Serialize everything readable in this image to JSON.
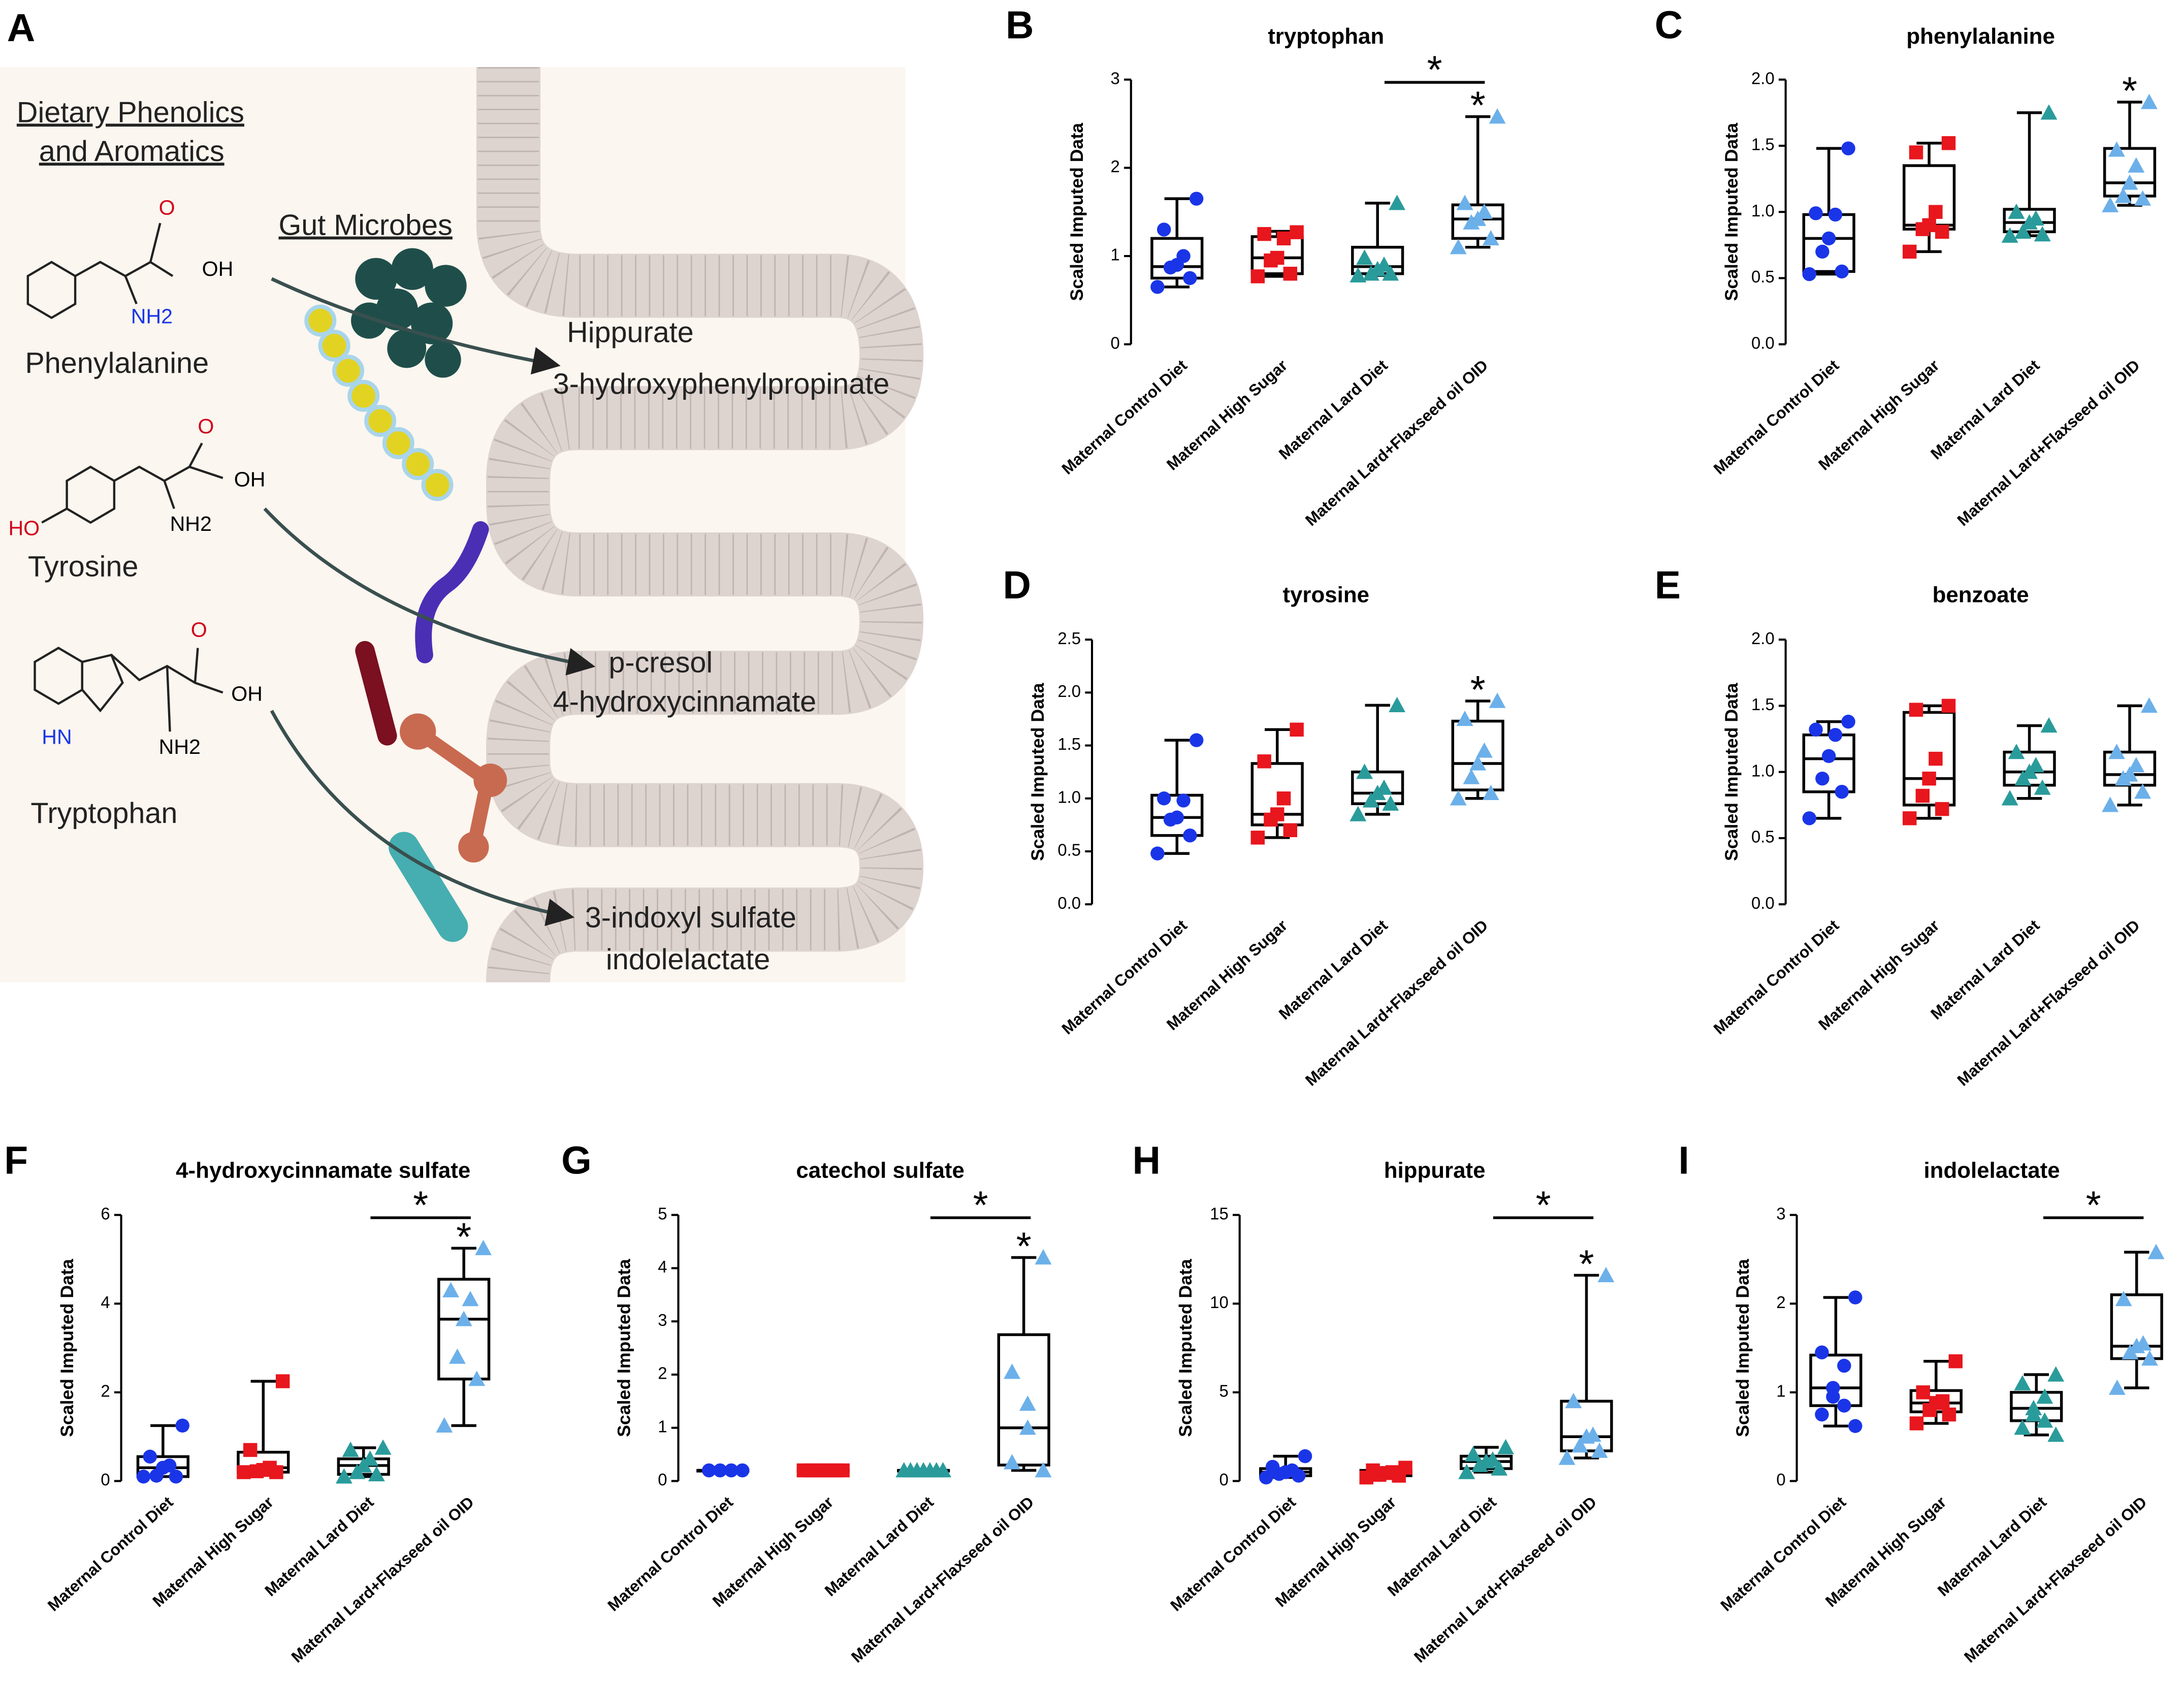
{
  "panel_a": {
    "label": "A",
    "heading_lines": [
      "Dietary Phenolics",
      "and Aromatics"
    ],
    "microbes_label": "Gut Microbes",
    "molecules": [
      {
        "name": "Phenylalanine",
        "atoms": [
          "O",
          "OH",
          "NH2"
        ]
      },
      {
        "name": "Tyrosine",
        "atoms": [
          "O",
          "OH",
          "NH2",
          "HO"
        ]
      },
      {
        "name": "Tryptophan",
        "atoms": [
          "O",
          "OH",
          "HN",
          "NH2"
        ]
      }
    ],
    "products": [
      [
        "Hippurate",
        "3-hydroxyphenylpropinate"
      ],
      [
        "p-cresol",
        "4-hydroxycinnamate"
      ],
      [
        "3-indoxyl sulfate",
        "indolelactate"
      ]
    ]
  },
  "chart_data": [
    {
      "type": "box",
      "panel": "B",
      "title": "tryptophan",
      "ylabel": "Scaled Imputed Data",
      "categories": [
        "Maternal Control Diet",
        "Maternal High Sugar",
        "Maternal Lard Diet",
        "Maternal Lard+Flaxseed oil OID"
      ],
      "colors": [
        "#1a35e8",
        "#e8161d",
        "#2a9b9b",
        "#6cb0ea"
      ],
      "markers": [
        "circle",
        "square",
        "triangle",
        "triangle"
      ],
      "ylim": [
        0,
        3
      ],
      "yticks": [
        0,
        1,
        2,
        3
      ],
      "bracket_star": "*",
      "group_star": "*",
      "boxes": [
        {
          "min": 0.65,
          "q1": 0.75,
          "median": 0.88,
          "q3": 1.2,
          "max": 1.65,
          "points": [
            1.65,
            1.3,
            1.0,
            0.9,
            0.87,
            0.75,
            0.65
          ]
        },
        {
          "min": 0.77,
          "q1": 0.8,
          "median": 0.98,
          "q3": 1.22,
          "max": 1.28,
          "points": [
            1.27,
            1.25,
            1.2,
            0.98,
            0.95,
            0.8,
            0.77
          ]
        },
        {
          "min": 0.78,
          "q1": 0.8,
          "median": 0.88,
          "q3": 1.1,
          "max": 1.6,
          "points": [
            1.6,
            0.98,
            0.9,
            0.85,
            0.8,
            0.8,
            0.78
          ]
        },
        {
          "min": 1.1,
          "q1": 1.2,
          "median": 1.42,
          "q3": 1.58,
          "max": 2.58,
          "points": [
            2.58,
            1.6,
            1.5,
            1.42,
            1.38,
            1.2,
            1.1
          ]
        }
      ]
    },
    {
      "type": "box",
      "panel": "C",
      "title": "phenylalanine",
      "ylabel": "Scaled Imputed Data",
      "categories": [
        "Maternal Control Diet",
        "Maternal High Sugar",
        "Maternal Lard Diet",
        "Maternal Lard+Flaxseed oil OID"
      ],
      "colors": [
        "#1a35e8",
        "#e8161d",
        "#2a9b9b",
        "#6cb0ea"
      ],
      "markers": [
        "circle",
        "square",
        "triangle",
        "triangle"
      ],
      "ylim": [
        0,
        2
      ],
      "yticks": [
        {
          "value": 0,
          "label": "0.0"
        },
        0.5,
        {
          "value": 1,
          "label": "1.0"
        },
        1.5,
        {
          "value": 2,
          "label": "2.0"
        }
      ],
      "group_star": "*",
      "boxes": [
        {
          "min": 0.53,
          "q1": 0.55,
          "median": 0.8,
          "q3": 0.98,
          "max": 1.48,
          "points": [
            1.48,
            0.99,
            0.98,
            0.8,
            0.7,
            0.55,
            0.53
          ]
        },
        {
          "min": 0.7,
          "q1": 0.87,
          "median": 0.9,
          "q3": 1.35,
          "max": 1.52,
          "points": [
            1.52,
            1.45,
            1.0,
            0.9,
            0.87,
            0.85,
            0.7
          ]
        },
        {
          "min": 0.82,
          "q1": 0.85,
          "median": 0.92,
          "q3": 1.02,
          "max": 1.75,
          "points": [
            1.75,
            1.0,
            0.95,
            0.92,
            0.85,
            0.83,
            0.82
          ]
        },
        {
          "min": 1.05,
          "q1": 1.12,
          "median": 1.22,
          "q3": 1.48,
          "max": 1.83,
          "points": [
            1.83,
            1.47,
            1.35,
            1.22,
            1.12,
            1.1,
            1.05
          ]
        }
      ]
    },
    {
      "type": "box",
      "panel": "D",
      "title": "tyrosine",
      "ylabel": "Scaled Imputed Data",
      "categories": [
        "Maternal Control Diet",
        "Maternal High Sugar",
        "Maternal Lard Diet",
        "Maternal Lard+Flaxseed oil OID"
      ],
      "colors": [
        "#1a35e8",
        "#e8161d",
        "#2a9b9b",
        "#6cb0ea"
      ],
      "markers": [
        "circle",
        "square",
        "triangle",
        "triangle"
      ],
      "ylim": [
        0,
        2.5
      ],
      "yticks": [
        {
          "value": 0,
          "label": "0.0"
        },
        0.5,
        {
          "value": 1,
          "label": "1.0"
        },
        1.5,
        {
          "value": 2,
          "label": "2.0"
        },
        2.5
      ],
      "group_star": "*",
      "boxes": [
        {
          "min": 0.48,
          "q1": 0.65,
          "median": 0.82,
          "q3": 1.03,
          "max": 1.55,
          "points": [
            1.55,
            1.0,
            0.98,
            0.82,
            0.8,
            0.65,
            0.48
          ]
        },
        {
          "min": 0.63,
          "q1": 0.75,
          "median": 0.85,
          "q3": 1.33,
          "max": 1.65,
          "points": [
            1.65,
            1.35,
            1.0,
            0.85,
            0.8,
            0.7,
            0.63
          ]
        },
        {
          "min": 0.85,
          "q1": 0.95,
          "median": 1.05,
          "q3": 1.25,
          "max": 1.88,
          "points": [
            1.88,
            1.25,
            1.1,
            1.05,
            0.98,
            0.95,
            0.85
          ]
        },
        {
          "min": 1.0,
          "q1": 1.08,
          "median": 1.33,
          "q3": 1.73,
          "max": 1.92,
          "points": [
            1.92,
            1.75,
            1.45,
            1.33,
            1.2,
            1.05,
            1.0
          ]
        }
      ]
    },
    {
      "type": "box",
      "panel": "E",
      "title": "benzoate",
      "ylabel": "Scaled Imputed Data",
      "categories": [
        "Maternal Control Diet",
        "Maternal High Sugar",
        "Maternal Lard Diet",
        "Maternal Lard+Flaxseed oil OID"
      ],
      "colors": [
        "#1a35e8",
        "#e8161d",
        "#2a9b9b",
        "#6cb0ea"
      ],
      "markers": [
        "circle",
        "square",
        "triangle",
        "triangle"
      ],
      "ylim": [
        0,
        2
      ],
      "yticks": [
        {
          "value": 0,
          "label": "0.0"
        },
        0.5,
        {
          "value": 1,
          "label": "1.0"
        },
        1.5,
        {
          "value": 2,
          "label": "2.0"
        }
      ],
      "boxes": [
        {
          "min": 0.65,
          "q1": 0.85,
          "median": 1.1,
          "q3": 1.28,
          "max": 1.38,
          "points": [
            1.38,
            1.32,
            1.28,
            1.12,
            0.95,
            0.85,
            0.65
          ]
        },
        {
          "min": 0.65,
          "q1": 0.75,
          "median": 0.95,
          "q3": 1.45,
          "max": 1.5,
          "points": [
            1.5,
            1.47,
            1.1,
            0.95,
            0.82,
            0.72,
            0.65
          ]
        },
        {
          "min": 0.8,
          "q1": 0.9,
          "median": 1.0,
          "q3": 1.15,
          "max": 1.35,
          "points": [
            1.35,
            1.15,
            1.05,
            1.0,
            0.95,
            0.88,
            0.8
          ]
        },
        {
          "min": 0.75,
          "q1": 0.9,
          "median": 0.98,
          "q3": 1.15,
          "max": 1.5,
          "points": [
            1.5,
            1.15,
            1.05,
            0.98,
            0.95,
            0.85,
            0.75
          ]
        }
      ]
    },
    {
      "type": "box",
      "panel": "F",
      "title": "4-hydroxycinnamate sulfate",
      "ylabel": "Scaled Imputed Data",
      "categories": [
        "Maternal Control Diet",
        "Maternal High Sugar",
        "Maternal Lard Diet",
        "Maternal Lard+Flaxseed oil OID"
      ],
      "colors": [
        "#1a35e8",
        "#e8161d",
        "#2a9b9b",
        "#6cb0ea"
      ],
      "markers": [
        "circle",
        "square",
        "triangle",
        "triangle"
      ],
      "ylim": [
        0,
        6
      ],
      "yticks": [
        0,
        2,
        4,
        6
      ],
      "bracket_star": "*",
      "group_star": "*",
      "boxes": [
        {
          "min": 0.1,
          "q1": 0.1,
          "median": 0.3,
          "q3": 0.55,
          "max": 1.25,
          "points": [
            1.25,
            0.55,
            0.35,
            0.3,
            0.12,
            0.1,
            0.1
          ]
        },
        {
          "min": 0.2,
          "q1": 0.2,
          "median": 0.3,
          "q3": 0.65,
          "max": 2.25,
          "points": [
            2.25,
            0.7,
            0.3,
            0.25,
            0.22,
            0.2,
            0.2
          ]
        },
        {
          "min": 0.1,
          "q1": 0.15,
          "median": 0.35,
          "q3": 0.5,
          "max": 0.75,
          "points": [
            0.75,
            0.7,
            0.5,
            0.35,
            0.2,
            0.15,
            0.1
          ]
        },
        {
          "min": 1.25,
          "q1": 2.3,
          "median": 3.65,
          "q3": 4.55,
          "max": 5.25,
          "points": [
            5.25,
            4.3,
            4.1,
            3.65,
            2.8,
            2.3,
            1.25
          ]
        }
      ]
    },
    {
      "type": "box",
      "panel": "G",
      "title": "catechol sulfate",
      "ylabel": "Scaled Imputed Data",
      "categories": [
        "Maternal Control Diet",
        "Maternal High Sugar",
        "Maternal Lard Diet",
        "Maternal Lard+Flaxseed oil OID"
      ],
      "colors": [
        "#1a35e8",
        "#e8161d",
        "#2a9b9b",
        "#6cb0ea"
      ],
      "markers": [
        "circle",
        "square",
        "triangle",
        "triangle"
      ],
      "ylim": [
        0,
        5
      ],
      "yticks": [
        0,
        1,
        2,
        3,
        4,
        5
      ],
      "bracket_star": "*",
      "group_star": "*",
      "boxes": [
        {
          "min": 0.2,
          "q1": 0.2,
          "median": 0.2,
          "q3": 0.2,
          "max": 0.2,
          "points": [
            0.2,
            0.2,
            0.2,
            0.2,
            0.2,
            0.2,
            0.2,
            0.2
          ]
        },
        {
          "min": 0.2,
          "q1": 0.2,
          "median": 0.2,
          "q3": 0.2,
          "max": 0.2,
          "points": [
            0.2,
            0.2,
            0.2,
            0.2,
            0.2,
            0.2,
            0.2
          ]
        },
        {
          "min": 0.2,
          "q1": 0.2,
          "median": 0.2,
          "q3": 0.2,
          "max": 0.2,
          "points": [
            0.2,
            0.2,
            0.2,
            0.2,
            0.2,
            0.2,
            0.2
          ]
        },
        {
          "min": 0.2,
          "q1": 0.3,
          "median": 1.0,
          "q3": 2.75,
          "max": 4.2,
          "points": [
            4.2,
            2.05,
            1.45,
            1.0,
            0.35,
            0.2
          ]
        }
      ]
    },
    {
      "type": "box",
      "panel": "H",
      "title": "hippurate",
      "ylabel": "Scaled Imputed Data",
      "categories": [
        "Maternal Control Diet",
        "Maternal High Sugar",
        "Maternal Lard Diet",
        "Maternal Lard+Flaxseed oil OID"
      ],
      "colors": [
        "#1a35e8",
        "#e8161d",
        "#2a9b9b",
        "#6cb0ea"
      ],
      "markers": [
        "circle",
        "square",
        "triangle",
        "triangle"
      ],
      "ylim": [
        0,
        15
      ],
      "yticks": [
        0,
        5,
        10,
        15
      ],
      "bracket_star": "*",
      "group_star": "*",
      "boxes": [
        {
          "min": 0.2,
          "q1": 0.3,
          "median": 0.5,
          "q3": 0.7,
          "max": 1.4,
          "points": [
            1.4,
            0.8,
            0.6,
            0.5,
            0.4,
            0.3,
            0.2
          ]
        },
        {
          "min": 0.2,
          "q1": 0.3,
          "median": 0.5,
          "q3": 0.6,
          "max": 0.75,
          "points": [
            0.75,
            0.6,
            0.5,
            0.45,
            0.35,
            0.3,
            0.2
          ]
        },
        {
          "min": 0.5,
          "q1": 0.7,
          "median": 1.1,
          "q3": 1.4,
          "max": 1.9,
          "points": [
            1.9,
            1.5,
            1.2,
            1.1,
            0.9,
            0.7,
            0.5
          ]
        },
        {
          "min": 1.3,
          "q1": 1.7,
          "median": 2.5,
          "q3": 4.5,
          "max": 11.6,
          "points": [
            11.6,
            4.5,
            2.6,
            2.5,
            2.0,
            1.7,
            1.3
          ]
        }
      ]
    },
    {
      "type": "box",
      "panel": "I",
      "title": "indolelactate",
      "ylabel": "Scaled Imputed Data",
      "categories": [
        "Maternal Control Diet",
        "Maternal High Sugar",
        "Maternal Lard Diet",
        "Maternal Lard+Flaxseed oil OID"
      ],
      "colors": [
        "#1a35e8",
        "#e8161d",
        "#2a9b9b",
        "#6cb0ea"
      ],
      "markers": [
        "circle",
        "square",
        "triangle",
        "triangle"
      ],
      "ylim": [
        0,
        3
      ],
      "yticks": [
        0,
        1,
        2,
        3
      ],
      "bracket_star": "*",
      "boxes": [
        {
          "min": 0.62,
          "q1": 0.85,
          "median": 1.05,
          "q3": 1.42,
          "max": 2.07,
          "points": [
            2.07,
            1.45,
            1.3,
            1.05,
            0.95,
            0.85,
            0.75,
            0.62
          ]
        },
        {
          "min": 0.65,
          "q1": 0.78,
          "median": 0.88,
          "q3": 1.02,
          "max": 1.35,
          "points": [
            1.35,
            1.0,
            0.9,
            0.88,
            0.8,
            0.75,
            0.65
          ]
        },
        {
          "min": 0.52,
          "q1": 0.68,
          "median": 0.82,
          "q3": 1.0,
          "max": 1.2,
          "points": [
            1.2,
            1.1,
            0.95,
            0.82,
            0.75,
            0.68,
            0.6,
            0.52
          ]
        },
        {
          "min": 1.05,
          "q1": 1.38,
          "median": 1.52,
          "q3": 2.1,
          "max": 2.58,
          "points": [
            2.58,
            2.05,
            1.55,
            1.52,
            1.45,
            1.38,
            1.05
          ]
        }
      ]
    }
  ]
}
